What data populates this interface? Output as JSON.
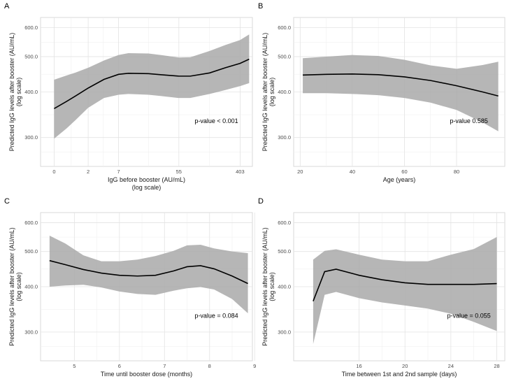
{
  "chart_data": [
    {
      "panel": "A",
      "type": "line",
      "xscale": "log",
      "xlabel": "IgG before booster (AU/mL)",
      "xlabel2": "(log scale)",
      "ylabel": "Predicted IgG levels after booster (AU/mL)",
      "ylabel2": "(log scale)",
      "xticks": [
        0,
        2,
        7,
        55,
        403
      ],
      "xlim": [
        -0.55,
        600
      ],
      "yticks": [
        300.0,
        400.0,
        500.0,
        600.0
      ],
      "ylim": [
        250,
        640
      ],
      "pvalue": "p-value < 0.001",
      "fit": {
        "x": [
          0,
          0.5,
          1,
          2,
          4,
          7,
          10,
          20,
          30,
          55,
          80,
          150,
          250,
          403,
          540
        ],
        "y": [
          360,
          377,
          390,
          410,
          433,
          447,
          450,
          449,
          446,
          442,
          442,
          451,
          466,
          479,
          492
        ],
        "lower": [
          298,
          318,
          335,
          362,
          385,
          393,
          395,
          393,
          390,
          385,
          385,
          395,
          405,
          415,
          423
        ],
        "upper": [
          432,
          444,
          452,
          466,
          488,
          505,
          511,
          510,
          505,
          497,
          498,
          518,
          538,
          555,
          575
        ]
      }
    },
    {
      "panel": "B",
      "type": "line",
      "xscale": "linear",
      "xlabel": "Age (years)",
      "ylabel": "Predicted IgG levels after booster (AU/mL)",
      "ylabel2": "(log scale)",
      "xticks": [
        20,
        40,
        60,
        80
      ],
      "xlim": [
        17.5,
        98.5
      ],
      "yticks": [
        300.0,
        400.0,
        500.0,
        600.0
      ],
      "ylim": [
        250,
        640
      ],
      "pvalue": "p-value 0.585",
      "fit": {
        "x": [
          21,
          30,
          40,
          50,
          60,
          70,
          80,
          90,
          96
        ],
        "y": [
          445,
          447,
          448,
          446,
          440,
          430,
          416,
          400,
          390
        ],
        "lower": [
          397,
          397,
          395,
          392,
          385,
          374,
          357,
          330,
          312
        ],
        "upper": [
          495,
          500,
          505,
          502,
          490,
          473,
          463,
          474,
          484
        ]
      }
    },
    {
      "panel": "C",
      "type": "line",
      "xscale": "linear",
      "xlabel": "Time until booster dose (months)",
      "ylabel": "Predicted IgG levels after booster (AU/mL)",
      "ylabel2": "(log scale)",
      "xticks": [
        5,
        6,
        7,
        8,
        9
      ],
      "xlim": [
        4.25,
        8.95
      ],
      "yticks": [
        300.0,
        400.0,
        500.0,
        600.0
      ],
      "ylim": [
        250,
        640
      ],
      "pvalue": "p-value = 0.084",
      "fit": {
        "x": [
          4.45,
          4.8,
          5.2,
          5.6,
          6.0,
          6.4,
          6.8,
          7.2,
          7.5,
          7.8,
          8.1,
          8.5,
          8.85
        ],
        "y": [
          472,
          460,
          446,
          436,
          430,
          428,
          430,
          442,
          454,
          457,
          448,
          428,
          408
        ],
        "lower": [
          400,
          403,
          405,
          398,
          388,
          382,
          380,
          390,
          396,
          399,
          393,
          370,
          338
        ],
        "upper": [
          553,
          526,
          488,
          470,
          470,
          475,
          486,
          502,
          520,
          522,
          510,
          500,
          495
        ]
      }
    },
    {
      "panel": "D",
      "type": "line",
      "xscale": "linear",
      "xlabel": "Time between 1st and 2nd sample (days)",
      "ylabel": "Predicted IgG levels after booster (AU/mL)",
      "ylabel2": "(log scale)",
      "xticks": [
        16,
        20,
        24,
        28
      ],
      "xlim": [
        10.3,
        28.7
      ],
      "yticks": [
        300.0,
        400.0,
        500.0,
        600.0
      ],
      "ylim": [
        250,
        640
      ],
      "pvalue": "p-value = 0.055",
      "fit": {
        "x": [
          12,
          13,
          14,
          16,
          18,
          20,
          22,
          24,
          26,
          28
        ],
        "y": [
          365,
          440,
          447,
          430,
          418,
          410,
          406,
          406,
          406,
          408
        ],
        "lower": [
          278,
          380,
          387,
          372,
          362,
          355,
          348,
          337,
          320,
          302
        ],
        "upper": [
          475,
          502,
          507,
          490,
          475,
          470,
          470,
          490,
          508,
          548
        ]
      }
    }
  ]
}
